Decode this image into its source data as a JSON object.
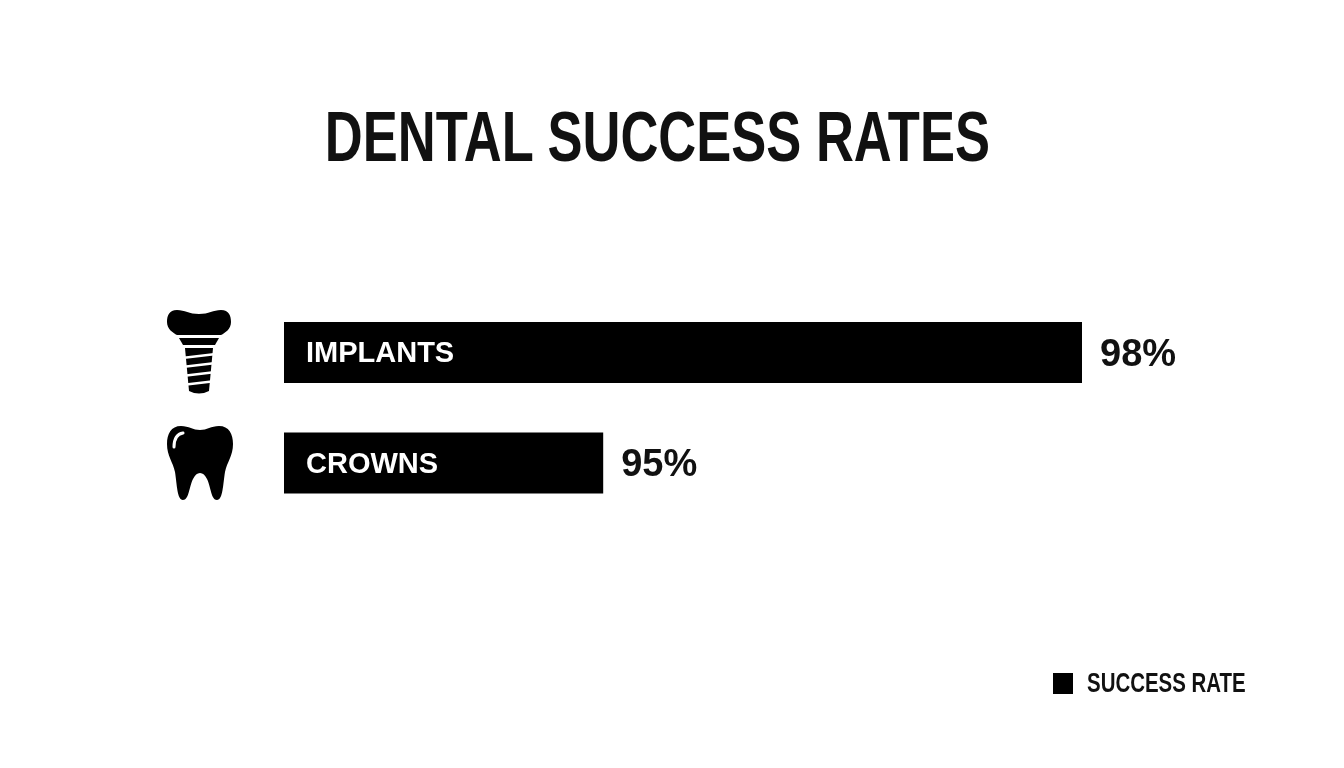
{
  "chart_data": {
    "type": "bar",
    "title": "DENTAL SUCCESS RATES",
    "orientation": "horizontal",
    "categories": [
      "IMPLANTS",
      "CROWNS"
    ],
    "series": [
      {
        "name": "SUCCESS RATE",
        "color": "#000000",
        "values": [
          98,
          95
        ],
        "value_labels": [
          "98%",
          "95%"
        ]
      }
    ],
    "xlim": [
      93,
      98
    ],
    "tick_labels": "y",
    "legend": "bottom right"
  }
}
